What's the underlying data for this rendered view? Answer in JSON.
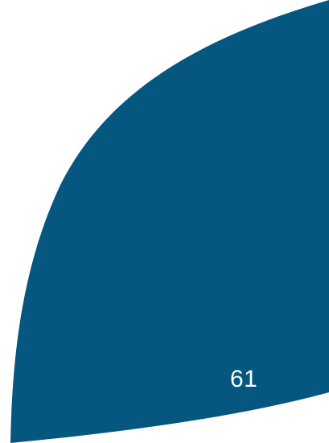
{
  "page": {
    "number": "61"
  },
  "colors": {
    "background": "#ffffff",
    "shape_fill": "#06577f",
    "page_number_text": "#ffffff"
  }
}
